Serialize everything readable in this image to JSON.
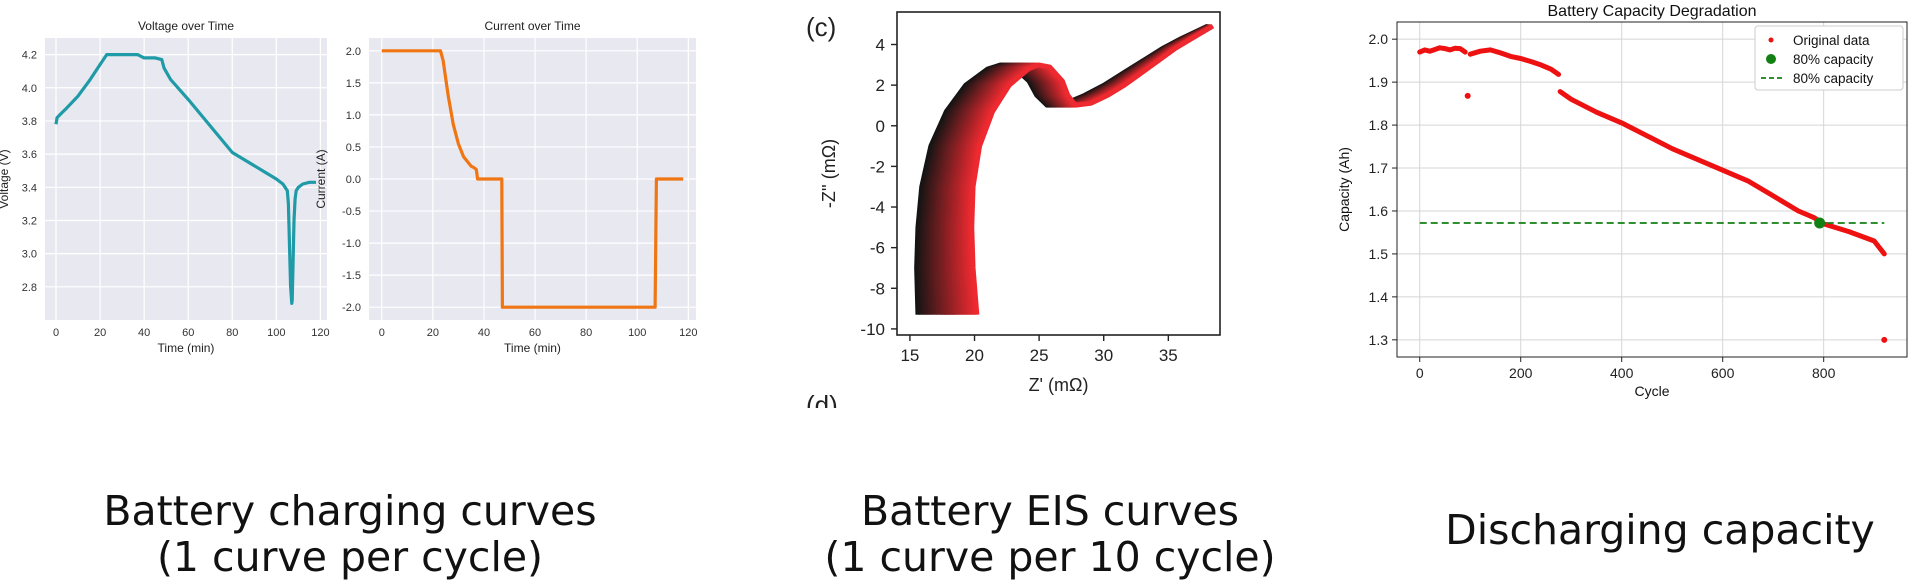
{
  "chart_data": [
    {
      "type": "line",
      "title": "Voltage over Time",
      "xlabel": "Time (min)",
      "ylabel": "Voltage (V)",
      "xlim": [
        -5,
        123
      ],
      "ylim": [
        2.6,
        4.3
      ],
      "xticks": [
        0,
        20,
        40,
        60,
        80,
        100,
        120
      ],
      "yticks": [
        2.8,
        3.0,
        3.2,
        3.4,
        3.6,
        3.8,
        4.0,
        4.2
      ],
      "grid": true,
      "color": "#1f9aa7",
      "series": [
        {
          "x": [
            0,
            0.5,
            2,
            5,
            10,
            15,
            20,
            23,
            30,
            37,
            40,
            45,
            48,
            49,
            52,
            60,
            70,
            80,
            90,
            95,
            100,
            103,
            104,
            105,
            105.5,
            106,
            106.5,
            107,
            107.2,
            107.5,
            108,
            108.5,
            109,
            110,
            112,
            115,
            118
          ],
          "y": [
            3.78,
            3.82,
            3.84,
            3.88,
            3.95,
            4.04,
            4.14,
            4.2,
            4.2,
            4.2,
            4.18,
            4.18,
            4.17,
            4.12,
            4.05,
            3.93,
            3.77,
            3.61,
            3.53,
            3.49,
            3.45,
            3.42,
            3.4,
            3.38,
            3.3,
            3.05,
            2.8,
            2.7,
            2.72,
            2.9,
            3.2,
            3.33,
            3.38,
            3.4,
            3.42,
            3.43,
            3.43
          ]
        }
      ]
    },
    {
      "type": "line",
      "title": "Current over Time",
      "xlabel": "Time (min)",
      "ylabel": "Current (A)",
      "xlim": [
        -5,
        123
      ],
      "ylim": [
        -2.2,
        2.2
      ],
      "xticks": [
        0,
        20,
        40,
        60,
        80,
        100,
        120
      ],
      "yticks": [
        -2.0,
        -1.5,
        -1.0,
        -0.5,
        0.0,
        0.5,
        1.0,
        1.5,
        2.0
      ],
      "grid": true,
      "color": "#ef7613",
      "series": [
        {
          "x": [
            0,
            23,
            24,
            26,
            28,
            30,
            32,
            34,
            35,
            36,
            37,
            37.5,
            47,
            47.2,
            107,
            107.5,
            118
          ],
          "y": [
            2.0,
            2.0,
            1.85,
            1.3,
            0.85,
            0.55,
            0.35,
            0.25,
            0.2,
            0.18,
            0.15,
            0.0,
            0.0,
            -2.0,
            -2.0,
            0.0,
            0.0
          ]
        }
      ]
    },
    {
      "type": "line",
      "panel_label": "(c)",
      "panel_label_bottom": "(d)",
      "xlabel": "Z' (mΩ)",
      "ylabel": "-Z'' (mΩ)",
      "xlim": [
        14,
        39
      ],
      "ylim": [
        -10.3,
        5.6
      ],
      "xticks": [
        15,
        20,
        25,
        30,
        35
      ],
      "yticks": [
        -10,
        -8,
        -6,
        -4,
        -2,
        0,
        2,
        4
      ],
      "grid": false,
      "color_range": [
        "#141414",
        "#ee2a30"
      ],
      "curve_count": 24,
      "x_shift_range": [
        0,
        4.6
      ],
      "base_curve": {
        "x": [
          15.6,
          15.5,
          15.6,
          15.9,
          16.6,
          17.8,
          19.3,
          21.0,
          22.0,
          23.0,
          24.2,
          24.8,
          25.6,
          27.0,
          28.5,
          30.0,
          31.5,
          33.0,
          34.5,
          36.0,
          37.0,
          38.0
        ],
        "y": [
          -9.3,
          -7.0,
          -5.0,
          -3.0,
          -1.0,
          0.7,
          2.0,
          2.8,
          3.0,
          2.9,
          2.2,
          1.5,
          1.0,
          1.1,
          1.5,
          2.0,
          2.6,
          3.2,
          3.8,
          4.3,
          4.6,
          4.9
        ]
      }
    },
    {
      "type": "scatter",
      "title": "Battery Capacity Degradation",
      "xlabel": "Cycle",
      "ylabel": "Capacity (Ah)",
      "xlim": [
        -45,
        965
      ],
      "ylim": [
        1.26,
        2.04
      ],
      "xticks": [
        0,
        200,
        400,
        600,
        800
      ],
      "yticks": [
        1.3,
        1.4,
        1.5,
        1.6,
        1.7,
        1.8,
        1.9,
        2.0
      ],
      "grid": true,
      "legend_position": "top-right",
      "legend": [
        "Original data",
        "80% capacity",
        "80% capacity"
      ],
      "series": [
        {
          "name": "Original data",
          "color": "#ee1111",
          "kind": "points",
          "segments": [
            {
              "x": [
                0,
                10,
                20,
                30,
                40,
                50,
                60,
                70,
                80,
                90
              ],
              "y": [
                1.97,
                1.975,
                1.972,
                1.976,
                1.98,
                1.978,
                1.975,
                1.979,
                1.978,
                1.97
              ]
            },
            {
              "x": [
                95
              ],
              "y": [
                1.868
              ]
            },
            {
              "x": [
                100,
                120,
                140,
                160,
                180,
                200,
                220,
                240,
                260,
                275
              ],
              "y": [
                1.965,
                1.972,
                1.975,
                1.968,
                1.96,
                1.955,
                1.948,
                1.94,
                1.93,
                1.918
              ]
            },
            {
              "x": [
                278,
                300,
                350,
                400,
                450,
                500,
                550,
                600,
                650,
                700,
                750,
                780,
                800,
                850,
                900,
                920
              ],
              "y": [
                1.878,
                1.86,
                1.83,
                1.805,
                1.775,
                1.745,
                1.72,
                1.695,
                1.67,
                1.635,
                1.6,
                1.585,
                1.57,
                1.552,
                1.53,
                1.5
              ]
            },
            {
              "x": [
                920
              ],
              "y": [
                1.3
              ]
            }
          ]
        },
        {
          "name": "80% capacity",
          "color": "#138013",
          "kind": "marker",
          "x": [
            792
          ],
          "y": [
            1.572
          ]
        },
        {
          "name": "80% capacity",
          "color": "#138013",
          "kind": "dashed-line",
          "x": [
            0,
            920
          ],
          "y": [
            1.572,
            1.572
          ]
        }
      ]
    }
  ],
  "captions": [
    {
      "line1": "Battery charging curves",
      "line2": "(1 curve per cycle)"
    },
    {
      "line1": "Battery EIS curves",
      "line2": "(1 curve per 10 cycle)"
    },
    {
      "line1": "Discharging capacity",
      "line2": ""
    }
  ]
}
